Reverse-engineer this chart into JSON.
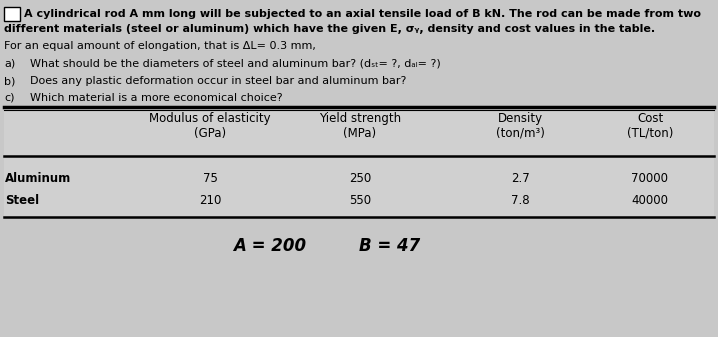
{
  "bg_color": "#c8c8c8",
  "table_bg_color": "#d4d4d4",
  "text_color": "#000000",
  "title_line1": "A cylindrical rod A mm long will be subjected to an axial tensile load of B kN. The rod can be made from two",
  "title_line2_part1": "different materials (steel or aluminum) which have the given E, σ",
  "title_line2_sub": "y",
  "title_line2_part2": ", density and cost values in the table.",
  "elongation_line": "For an equal amount of elongation, that is ΔL= 0.3 mm,",
  "qa_label": "a)",
  "qa_text": "What should be the diameters of steel and aluminum bar? (d",
  "qa_sub1": "st",
  "qa_mid": "= ?, d",
  "qa_sub2": "al",
  "qa_end": "= ?)",
  "qb_label": "b)",
  "qb_text": "Does any plastic deformation occur in steel bar and aluminum bar?",
  "qc_label": "c)",
  "qc_text": "Which material is a more economical choice?",
  "col_header1_line1": "Modulus of elasticity",
  "col_header1_line2": "(GPa)",
  "col_header2_line1": "Yield strength",
  "col_header2_line2": "(MPa)",
  "col_header3_line1": "Density",
  "col_header3_line2": "(ton/m³)",
  "col_header4_line1": "Cost",
  "col_header4_line2": "(TL/ton)",
  "row_labels": [
    "Aluminum",
    "Steel"
  ],
  "table_data": [
    [
      "75",
      "250",
      "2.7",
      "70000"
    ],
    [
      "210",
      "550",
      "7.8",
      "40000"
    ]
  ],
  "footer_A": "A = 200",
  "footer_B": "B = 47",
  "box_color": "#ffffff",
  "fontsize_text": 8.0,
  "fontsize_table": 8.5,
  "fontsize_footer": 12
}
